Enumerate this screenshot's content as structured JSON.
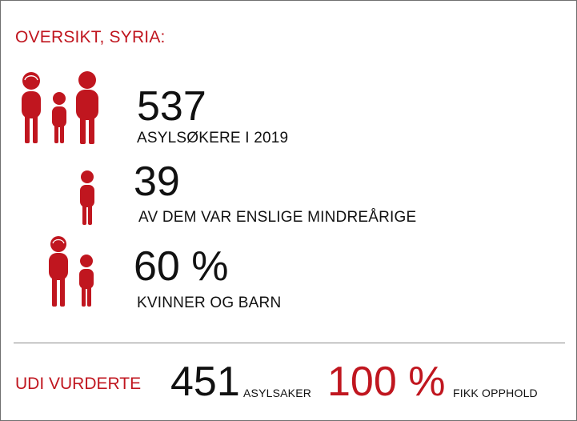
{
  "colors": {
    "accent": "#c0161f",
    "text": "#111111",
    "divider": "#8a8a8a"
  },
  "header": {
    "title": "OVERSIKT, SYRIA:"
  },
  "stats": [
    {
      "value": "537",
      "label": "ASYLSØKERE I 2019",
      "icon": "family-icon"
    },
    {
      "value": "39",
      "label": "AV DEM VAR ENSLIGE MINDREÅRIGE",
      "icon": "child-icon"
    },
    {
      "value": "60 %",
      "label": "KVINNER OG BARN",
      "icon": "mother-child-icon"
    }
  ],
  "footer": {
    "title": "UDI VURDERTE",
    "cases_value": "451",
    "cases_label": "ASYLSAKER",
    "residence_value": "100 %",
    "residence_label": "FIKK OPPHOLD"
  }
}
